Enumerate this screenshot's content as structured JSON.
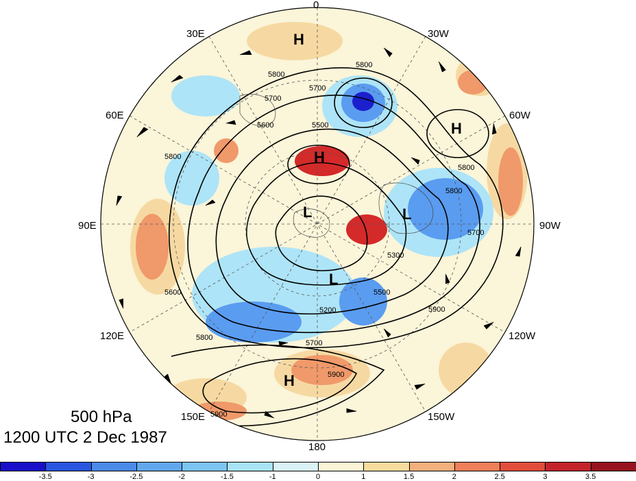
{
  "map": {
    "projection": "north-polar-stereographic",
    "level_label": "500 hPa",
    "time_label": "1200 UTC 2 Dec 1987",
    "longitude_labels": [
      "0",
      "30W",
      "60W",
      "90W",
      "120W",
      "150W",
      "180",
      "150E",
      "120E",
      "90E",
      "60E",
      "30E"
    ],
    "pressure_centers": [
      {
        "name": "high-north",
        "label": "H"
      },
      {
        "name": "high-greenland",
        "label": "H"
      },
      {
        "name": "high-europe",
        "label": "H"
      },
      {
        "name": "high-pacific",
        "label": "H"
      },
      {
        "name": "low-siberia",
        "label": "L"
      },
      {
        "name": "low-canada",
        "label": "L"
      },
      {
        "name": "low-arctic",
        "label": "L"
      }
    ],
    "contour_labels": [
      "5800",
      "5700",
      "5800",
      "5700",
      "5500",
      "5600",
      "5800",
      "5800",
      "5700",
      "5800",
      "5300",
      "5200",
      "5700",
      "5800",
      "5900",
      "5900",
      "5600",
      "5500",
      "5900"
    ],
    "anomaly_colors": {
      "strong_negative": "#1b1fcc",
      "negative": "#5a9cf0",
      "weak_negative": "#aee4f7",
      "neutral": "#fbf5d9",
      "weak_positive": "#f6d9a2",
      "positive": "#f0996a",
      "strong_positive": "#d42a2a"
    }
  },
  "colorbar": {
    "tick_labels": [
      "-3.5",
      "-3",
      "-2.5",
      "-2",
      "-1.5",
      "-1",
      "0",
      "1",
      "1.5",
      "2",
      "2.5",
      "3",
      "3.5"
    ],
    "colors": [
      "#1a0fc9",
      "#2a55e0",
      "#4a8ae8",
      "#62a7ee",
      "#7cc4f2",
      "#a9e3f6",
      "#d9f3f7",
      "#fdf6d6",
      "#f7dc9e",
      "#f4b07d",
      "#ef7f58",
      "#e14d3b",
      "#c4232b",
      "#96131f"
    ]
  }
}
